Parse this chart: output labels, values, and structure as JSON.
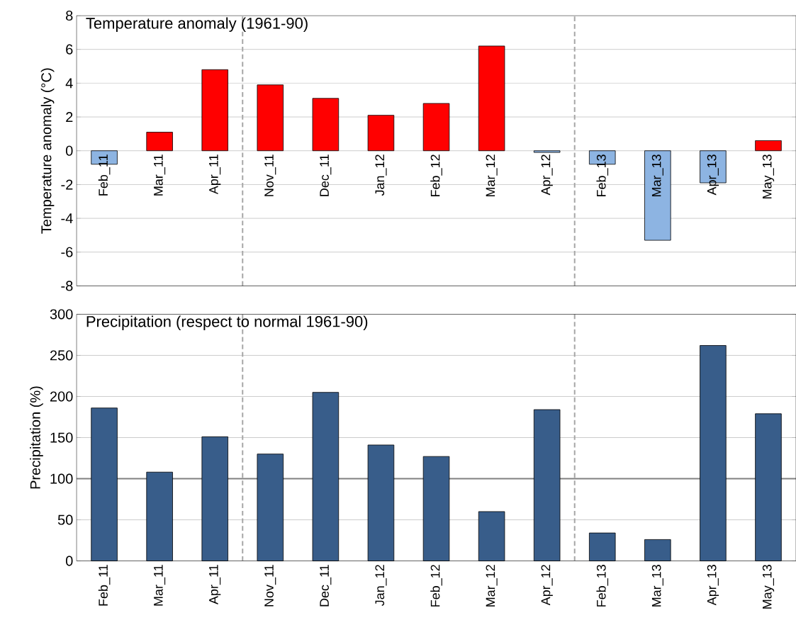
{
  "chart_data": [
    {
      "type": "bar",
      "title": "Temperature anomaly (1961-90)",
      "ylabel": "Temperature anomaly (°C)",
      "categories": [
        "Feb_11",
        "Mar_11",
        "Apr_11",
        "Nov_11",
        "Dec_11",
        "Jan_12",
        "Feb_12",
        "Mar_12",
        "Apr_12",
        "Feb_13",
        "Mar_13",
        "Apr_13",
        "May_13"
      ],
      "values": [
        -0.8,
        1.1,
        4.8,
        3.9,
        3.1,
        2.1,
        2.8,
        6.2,
        -0.1,
        -0.8,
        -5.3,
        -1.9,
        0.6
      ],
      "colors": [
        "#8db4e2",
        "#ff0000",
        "#ff0000",
        "#ff0000",
        "#ff0000",
        "#ff0000",
        "#ff0000",
        "#ff0000",
        "#8db4e2",
        "#8db4e2",
        "#8db4e2",
        "#8db4e2",
        "#ff0000"
      ],
      "ylim": [
        -8,
        8
      ],
      "yticks": [
        -8,
        -6,
        -4,
        -2,
        0,
        2,
        4,
        6,
        8
      ],
      "grid": "y"
    },
    {
      "type": "bar",
      "title": "Precipitation (respect to normal 1961-90)",
      "ylabel": "Precipitation (%)",
      "categories": [
        "Feb_11",
        "Mar_11",
        "Apr_11",
        "Nov_11",
        "Dec_11",
        "Jan_12",
        "Feb_12",
        "Mar_12",
        "Apr_12",
        "Feb_13",
        "Mar_13",
        "Apr_13",
        "May_13"
      ],
      "values": [
        186,
        108,
        151,
        130,
        205,
        141,
        127,
        60,
        184,
        34,
        26,
        262,
        179
      ],
      "color": "#385d8a",
      "ylim": [
        0,
        300
      ],
      "yticks": [
        0,
        50,
        100,
        150,
        200,
        250,
        300
      ],
      "grid": "y",
      "ref_lines": [
        {
          "axis": "y",
          "value": 100,
          "color": "#808080",
          "line_style": "solid"
        }
      ]
    }
  ]
}
